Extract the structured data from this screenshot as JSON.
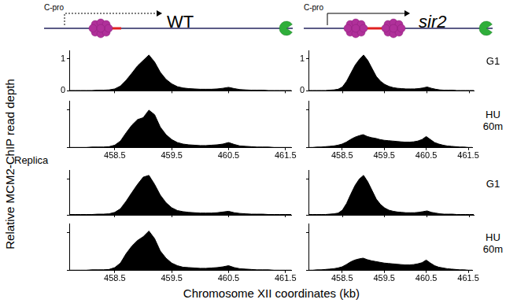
{
  "figure": {
    "ylabel": "Relative MCM2-ChIP read depth",
    "xlabel": "Chromosome XII coordinates (kb)",
    "replica_label": "Replica",
    "row_labels": [
      "G1",
      "HU 60m",
      "G1",
      "HU 60m"
    ],
    "diagrams": [
      {
        "title": "WT",
        "label": "C-pro",
        "line_style": "dashed"
      },
      {
        "title": "sir2",
        "label": "C-pro",
        "line_style": "solid"
      }
    ]
  },
  "chart_data": [
    {
      "type": "line",
      "color": "#000000",
      "grid": false,
      "tick_labels": "y",
      "xlim": [
        457.7,
        461.6
      ],
      "ylim": [
        0,
        1.25
      ],
      "xticks": [
        458.5,
        459.5,
        460.5,
        461.5
      ],
      "yticks": [
        0,
        1
      ],
      "x": [
        457.7,
        457.8,
        457.9,
        458.0,
        458.1,
        458.2,
        458.3,
        458.4,
        458.5,
        458.6,
        458.7,
        458.8,
        458.9,
        459.0,
        459.1,
        459.2,
        459.3,
        459.4,
        459.5,
        459.6,
        459.7,
        459.8,
        459.9,
        460.0,
        460.1,
        460.2,
        460.3,
        460.4,
        460.5,
        460.6,
        460.7,
        460.8,
        460.9,
        461.0,
        461.1,
        461.2,
        461.3,
        461.4,
        461.5,
        461.6
      ],
      "values": [
        0.01,
        0.01,
        0.01,
        0.01,
        0.01,
        0.02,
        0.02,
        0.03,
        0.06,
        0.15,
        0.33,
        0.55,
        0.78,
        0.95,
        1.12,
        0.9,
        0.58,
        0.36,
        0.22,
        0.13,
        0.09,
        0.07,
        0.06,
        0.05,
        0.05,
        0.05,
        0.06,
        0.08,
        0.11,
        0.07,
        0.04,
        0.03,
        0.02,
        0.02,
        0.02,
        0.01,
        0.01,
        0.01,
        0.01,
        0.01
      ]
    },
    {
      "type": "line",
      "color": "#000000",
      "grid": false,
      "tick_labels": "y",
      "xlim": [
        457.7,
        461.6
      ],
      "ylim": [
        0,
        1.25
      ],
      "xticks": [
        458.5,
        459.5,
        460.5,
        461.5
      ],
      "yticks": [
        0,
        1
      ],
      "x": [
        457.7,
        457.8,
        457.9,
        458.0,
        458.1,
        458.2,
        458.3,
        458.4,
        458.5,
        458.6,
        458.7,
        458.8,
        458.9,
        459.0,
        459.1,
        459.2,
        459.3,
        459.4,
        459.5,
        459.6,
        459.7,
        459.8,
        459.9,
        460.0,
        460.1,
        460.2,
        460.3,
        460.4,
        460.5,
        460.6,
        460.7,
        460.8,
        460.9,
        461.0,
        461.1,
        461.2,
        461.3,
        461.4,
        461.5,
        461.6
      ],
      "values": [
        0.01,
        0.01,
        0.01,
        0.01,
        0.01,
        0.02,
        0.03,
        0.05,
        0.12,
        0.3,
        0.55,
        0.8,
        0.98,
        1.12,
        0.95,
        0.7,
        0.45,
        0.3,
        0.2,
        0.14,
        0.1,
        0.08,
        0.07,
        0.06,
        0.06,
        0.06,
        0.07,
        0.09,
        0.12,
        0.08,
        0.05,
        0.03,
        0.02,
        0.02,
        0.02,
        0.01,
        0.01,
        0.01,
        0.01,
        0.01
      ]
    },
    {
      "type": "line",
      "color": "#000000",
      "grid": false,
      "tick_labels": "x",
      "xlim": [
        457.7,
        461.6
      ],
      "ylim": [
        0,
        1.25
      ],
      "xticks": [
        458.5,
        459.5,
        460.5,
        461.5
      ],
      "yticks": [
        0,
        1
      ],
      "x": [
        457.7,
        457.8,
        457.9,
        458.0,
        458.1,
        458.2,
        458.3,
        458.4,
        458.5,
        458.6,
        458.7,
        458.8,
        458.9,
        459.0,
        459.1,
        459.2,
        459.3,
        459.4,
        459.5,
        459.6,
        459.7,
        459.8,
        459.9,
        460.0,
        460.1,
        460.2,
        460.3,
        460.4,
        460.5,
        460.6,
        460.7,
        460.8,
        460.9,
        461.0,
        461.1,
        461.2,
        461.3,
        461.4,
        461.5,
        461.6
      ],
      "values": [
        0.01,
        0.01,
        0.01,
        0.01,
        0.02,
        0.02,
        0.02,
        0.03,
        0.07,
        0.18,
        0.4,
        0.6,
        0.75,
        0.8,
        1.0,
        0.88,
        0.55,
        0.35,
        0.22,
        0.14,
        0.1,
        0.08,
        0.07,
        0.06,
        0.06,
        0.07,
        0.08,
        0.1,
        0.14,
        0.09,
        0.05,
        0.04,
        0.03,
        0.02,
        0.02,
        0.02,
        0.01,
        0.01,
        0.01,
        0.01
      ]
    },
    {
      "type": "line",
      "color": "#000000",
      "grid": false,
      "tick_labels": "x",
      "xlim": [
        457.7,
        461.6
      ],
      "ylim": [
        0,
        1.25
      ],
      "xticks": [
        458.5,
        459.5,
        460.5,
        461.5
      ],
      "yticks": [
        0,
        1
      ],
      "x": [
        457.7,
        457.8,
        457.9,
        458.0,
        458.1,
        458.2,
        458.3,
        458.4,
        458.5,
        458.6,
        458.7,
        458.8,
        458.9,
        459.0,
        459.1,
        459.2,
        459.3,
        459.4,
        459.5,
        459.6,
        459.7,
        459.8,
        459.9,
        460.0,
        460.1,
        460.2,
        460.3,
        460.4,
        460.5,
        460.6,
        460.7,
        460.8,
        460.9,
        461.0,
        461.1,
        461.2,
        461.3,
        461.4,
        461.5,
        461.6
      ],
      "values": [
        0.01,
        0.01,
        0.02,
        0.02,
        0.03,
        0.04,
        0.05,
        0.07,
        0.1,
        0.15,
        0.22,
        0.28,
        0.32,
        0.35,
        0.3,
        0.27,
        0.25,
        0.22,
        0.2,
        0.19,
        0.18,
        0.17,
        0.16,
        0.15,
        0.15,
        0.16,
        0.18,
        0.22,
        0.3,
        0.22,
        0.14,
        0.1,
        0.07,
        0.05,
        0.04,
        0.03,
        0.02,
        0.02,
        0.01,
        0.01
      ]
    },
    {
      "type": "line",
      "color": "#000000",
      "grid": false,
      "tick_labels": false,
      "xlim": [
        457.7,
        461.6
      ],
      "ylim": [
        0,
        1.25
      ],
      "xticks": [
        458.5,
        459.5,
        460.5,
        461.5
      ],
      "yticks": [
        0,
        1
      ],
      "x": [
        457.7,
        457.8,
        457.9,
        458.0,
        458.1,
        458.2,
        458.3,
        458.4,
        458.5,
        458.6,
        458.7,
        458.8,
        458.9,
        459.0,
        459.1,
        459.2,
        459.3,
        459.4,
        459.5,
        459.6,
        459.7,
        459.8,
        459.9,
        460.0,
        460.1,
        460.2,
        460.3,
        460.4,
        460.5,
        460.6,
        460.7,
        460.8,
        460.9,
        461.0,
        461.1,
        461.2,
        461.3,
        461.4,
        461.5,
        461.6
      ],
      "values": [
        0.01,
        0.01,
        0.01,
        0.01,
        0.01,
        0.02,
        0.02,
        0.03,
        0.07,
        0.17,
        0.38,
        0.62,
        0.85,
        1.05,
        1.1,
        0.85,
        0.55,
        0.34,
        0.2,
        0.12,
        0.09,
        0.07,
        0.06,
        0.05,
        0.05,
        0.05,
        0.06,
        0.08,
        0.1,
        0.06,
        0.04,
        0.03,
        0.02,
        0.02,
        0.02,
        0.01,
        0.01,
        0.01,
        0.01,
        0.01
      ]
    },
    {
      "type": "line",
      "color": "#000000",
      "grid": false,
      "tick_labels": false,
      "xlim": [
        457.7,
        461.6
      ],
      "ylim": [
        0,
        1.25
      ],
      "xticks": [
        458.5,
        459.5,
        460.5,
        461.5
      ],
      "yticks": [
        0,
        1
      ],
      "x": [
        457.7,
        457.8,
        457.9,
        458.0,
        458.1,
        458.2,
        458.3,
        458.4,
        458.5,
        458.6,
        458.7,
        458.8,
        458.9,
        459.0,
        459.1,
        459.2,
        459.3,
        459.4,
        459.5,
        459.6,
        459.7,
        459.8,
        459.9,
        460.0,
        460.1,
        460.2,
        460.3,
        460.4,
        460.5,
        460.6,
        460.7,
        460.8,
        460.9,
        461.0,
        461.1,
        461.2,
        461.3,
        461.4,
        461.5,
        461.6
      ],
      "values": [
        0.01,
        0.01,
        0.01,
        0.01,
        0.01,
        0.02,
        0.03,
        0.05,
        0.13,
        0.32,
        0.58,
        0.82,
        1.0,
        1.1,
        0.92,
        0.68,
        0.44,
        0.29,
        0.19,
        0.13,
        0.1,
        0.08,
        0.07,
        0.06,
        0.06,
        0.06,
        0.07,
        0.09,
        0.11,
        0.07,
        0.05,
        0.03,
        0.02,
        0.02,
        0.02,
        0.01,
        0.01,
        0.01,
        0.01,
        0.01
      ]
    },
    {
      "type": "line",
      "color": "#000000",
      "grid": false,
      "tick_labels": "x",
      "xlim": [
        457.7,
        461.6
      ],
      "ylim": [
        0,
        1.25
      ],
      "xticks": [
        458.5,
        459.5,
        460.5,
        461.5
      ],
      "yticks": [
        0,
        1
      ],
      "x": [
        457.7,
        457.8,
        457.9,
        458.0,
        458.1,
        458.2,
        458.3,
        458.4,
        458.5,
        458.6,
        458.7,
        458.8,
        458.9,
        459.0,
        459.1,
        459.2,
        459.3,
        459.4,
        459.5,
        459.6,
        459.7,
        459.8,
        459.9,
        460.0,
        460.1,
        460.2,
        460.3,
        460.4,
        460.5,
        460.6,
        460.7,
        460.8,
        460.9,
        461.0,
        461.1,
        461.2,
        461.3,
        461.4,
        461.5,
        461.6
      ],
      "values": [
        0.01,
        0.01,
        0.01,
        0.01,
        0.02,
        0.02,
        0.02,
        0.03,
        0.08,
        0.2,
        0.45,
        0.65,
        0.8,
        0.9,
        1.05,
        0.85,
        0.52,
        0.33,
        0.2,
        0.13,
        0.09,
        0.08,
        0.07,
        0.06,
        0.06,
        0.07,
        0.08,
        0.1,
        0.13,
        0.08,
        0.05,
        0.04,
        0.03,
        0.02,
        0.02,
        0.02,
        0.01,
        0.01,
        0.01,
        0.01
      ]
    },
    {
      "type": "line",
      "color": "#000000",
      "grid": false,
      "tick_labels": "x",
      "xlim": [
        457.7,
        461.6
      ],
      "ylim": [
        0,
        1.25
      ],
      "xticks": [
        458.5,
        459.5,
        460.5,
        461.5
      ],
      "yticks": [
        0,
        1
      ],
      "x": [
        457.7,
        457.8,
        457.9,
        458.0,
        458.1,
        458.2,
        458.3,
        458.4,
        458.5,
        458.6,
        458.7,
        458.8,
        458.9,
        459.0,
        459.1,
        459.2,
        459.3,
        459.4,
        459.5,
        459.6,
        459.7,
        459.8,
        459.9,
        460.0,
        460.1,
        460.2,
        460.3,
        460.4,
        460.5,
        460.6,
        460.7,
        460.8,
        460.9,
        461.0,
        461.1,
        461.2,
        461.3,
        461.4,
        461.5,
        461.6
      ],
      "values": [
        0.01,
        0.01,
        0.02,
        0.02,
        0.03,
        0.04,
        0.05,
        0.07,
        0.1,
        0.16,
        0.23,
        0.28,
        0.31,
        0.33,
        0.29,
        0.26,
        0.24,
        0.22,
        0.2,
        0.19,
        0.18,
        0.17,
        0.16,
        0.15,
        0.15,
        0.16,
        0.18,
        0.21,
        0.28,
        0.2,
        0.13,
        0.09,
        0.07,
        0.05,
        0.04,
        0.03,
        0.02,
        0.02,
        0.01,
        0.01
      ]
    }
  ]
}
